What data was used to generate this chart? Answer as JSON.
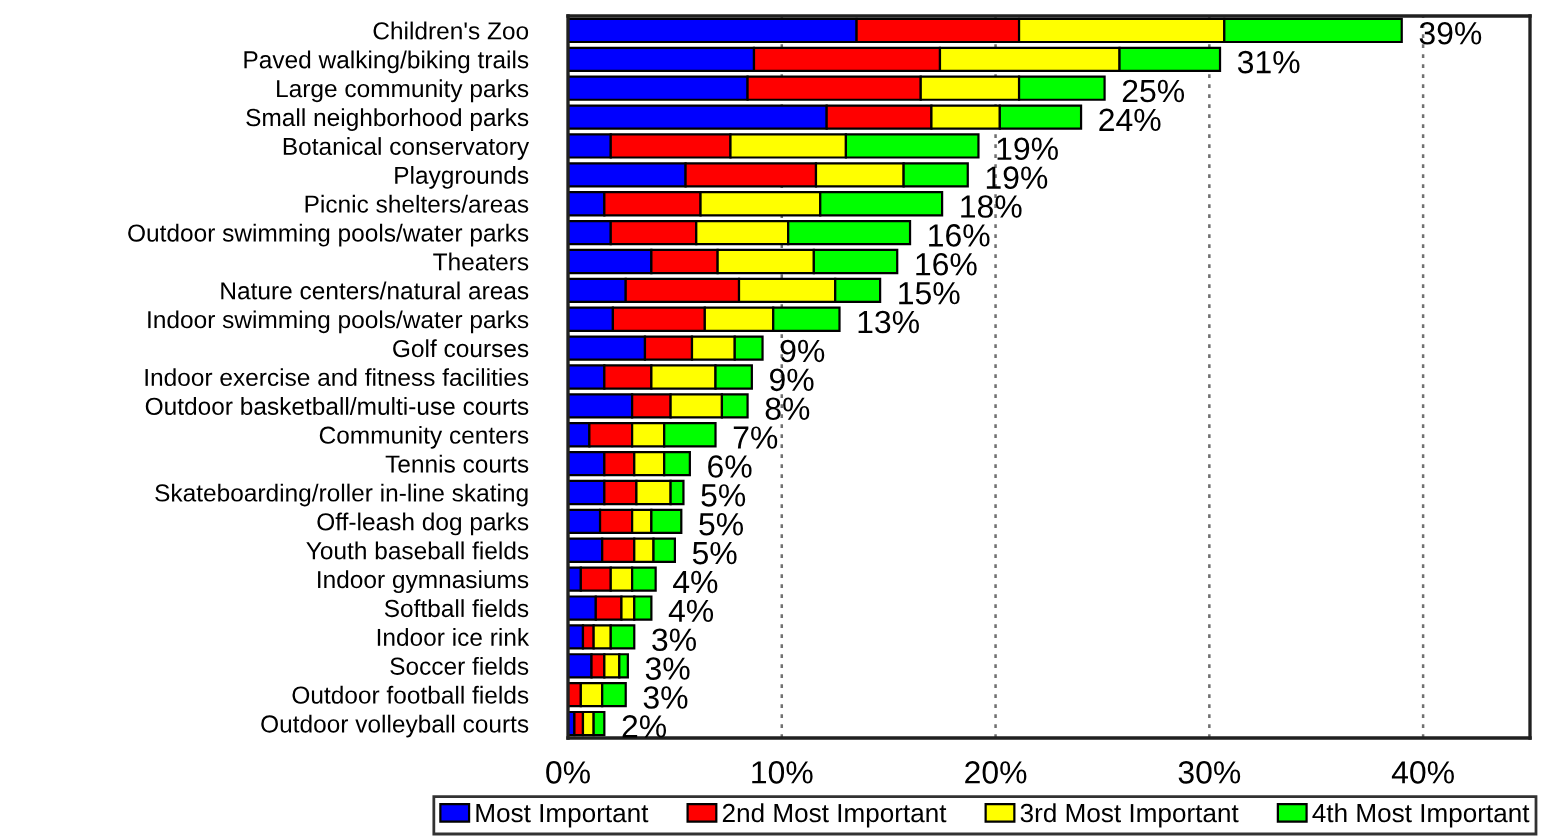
{
  "chart_data": {
    "type": "bar",
    "orientation": "horizontal",
    "stacked": true,
    "categories": [
      "Children's Zoo",
      "Paved walking/biking trails",
      "Large community parks",
      "Small neighborhood parks",
      "Botanical conservatory",
      "Playgrounds",
      "Picnic shelters/areas",
      "Outdoor swimming pools/water parks",
      "Theaters",
      "Nature centers/natural areas",
      "Indoor swimming pools/water parks",
      "Golf courses",
      "Indoor exercise and fitness facilities",
      "Outdoor basketball/multi-use courts",
      "Community centers",
      "Tennis courts",
      "Skateboarding/roller in-line skating",
      "Off-leash dog parks",
      "Youth baseball fields",
      "Indoor gymnasiums",
      "Softball fields",
      "Indoor ice rink",
      "Soccer fields",
      "Outdoor football fields",
      "Outdoor volleyball courts"
    ],
    "series": [
      {
        "name": "Most Important",
        "color": "#0000ff",
        "values": [
          13.5,
          8.7,
          8.4,
          12.1,
          2.0,
          5.5,
          1.7,
          2.0,
          3.9,
          2.7,
          2.1,
          3.6,
          1.7,
          3.0,
          1.0,
          1.7,
          1.7,
          1.5,
          1.6,
          0.6,
          1.3,
          0.7,
          1.1,
          0,
          0.3
        ]
      },
      {
        "name": "2nd Most Important",
        "color": "#ff0000",
        "values": [
          7.6,
          8.7,
          8.1,
          4.9,
          5.6,
          6.1,
          4.5,
          4.0,
          3.1,
          5.3,
          4.3,
          2.2,
          2.2,
          1.8,
          2.0,
          1.4,
          1.5,
          1.5,
          1.5,
          1.4,
          1.2,
          0.5,
          0.6,
          0.6,
          0.4
        ]
      },
      {
        "name": "3rd Most Important",
        "color": "#ffff00",
        "values": [
          9.6,
          8.4,
          4.6,
          3.2,
          5.4,
          4.1,
          5.6,
          4.3,
          4.5,
          4.5,
          3.2,
          2.0,
          3.0,
          2.4,
          1.5,
          1.4,
          1.6,
          0.9,
          0.9,
          1.0,
          0.6,
          0.8,
          0.7,
          1.0,
          0.5
        ]
      },
      {
        "name": "4th Most Important",
        "color": "#00ff00",
        "values": [
          8.3,
          4.7,
          4.0,
          3.8,
          6.2,
          3.0,
          5.7,
          5.7,
          3.9,
          2.1,
          3.1,
          1.3,
          1.7,
          1.2,
          2.4,
          1.2,
          0.6,
          1.4,
          1.0,
          1.1,
          0.8,
          1.1,
          0.4,
          1.1,
          0.5
        ]
      }
    ],
    "totals": [
      "39%",
      "31%",
      "25%",
      "24%",
      "19%",
      "19%",
      "18%",
      "16%",
      "16%",
      "15%",
      "13%",
      "9%",
      "9%",
      "8%",
      "7%",
      "6%",
      "5%",
      "5%",
      "5%",
      "4%",
      "4%",
      "3%",
      "3%",
      "3%",
      "2%"
    ],
    "xlim": [
      0,
      45
    ],
    "xticks": [
      {
        "value": 0,
        "label": "0%"
      },
      {
        "value": 10,
        "label": "10%"
      },
      {
        "value": 20,
        "label": "20%"
      },
      {
        "value": 30,
        "label": "30%"
      },
      {
        "value": 40,
        "label": "40%"
      }
    ],
    "grid": "x",
    "legend": "bottom"
  }
}
